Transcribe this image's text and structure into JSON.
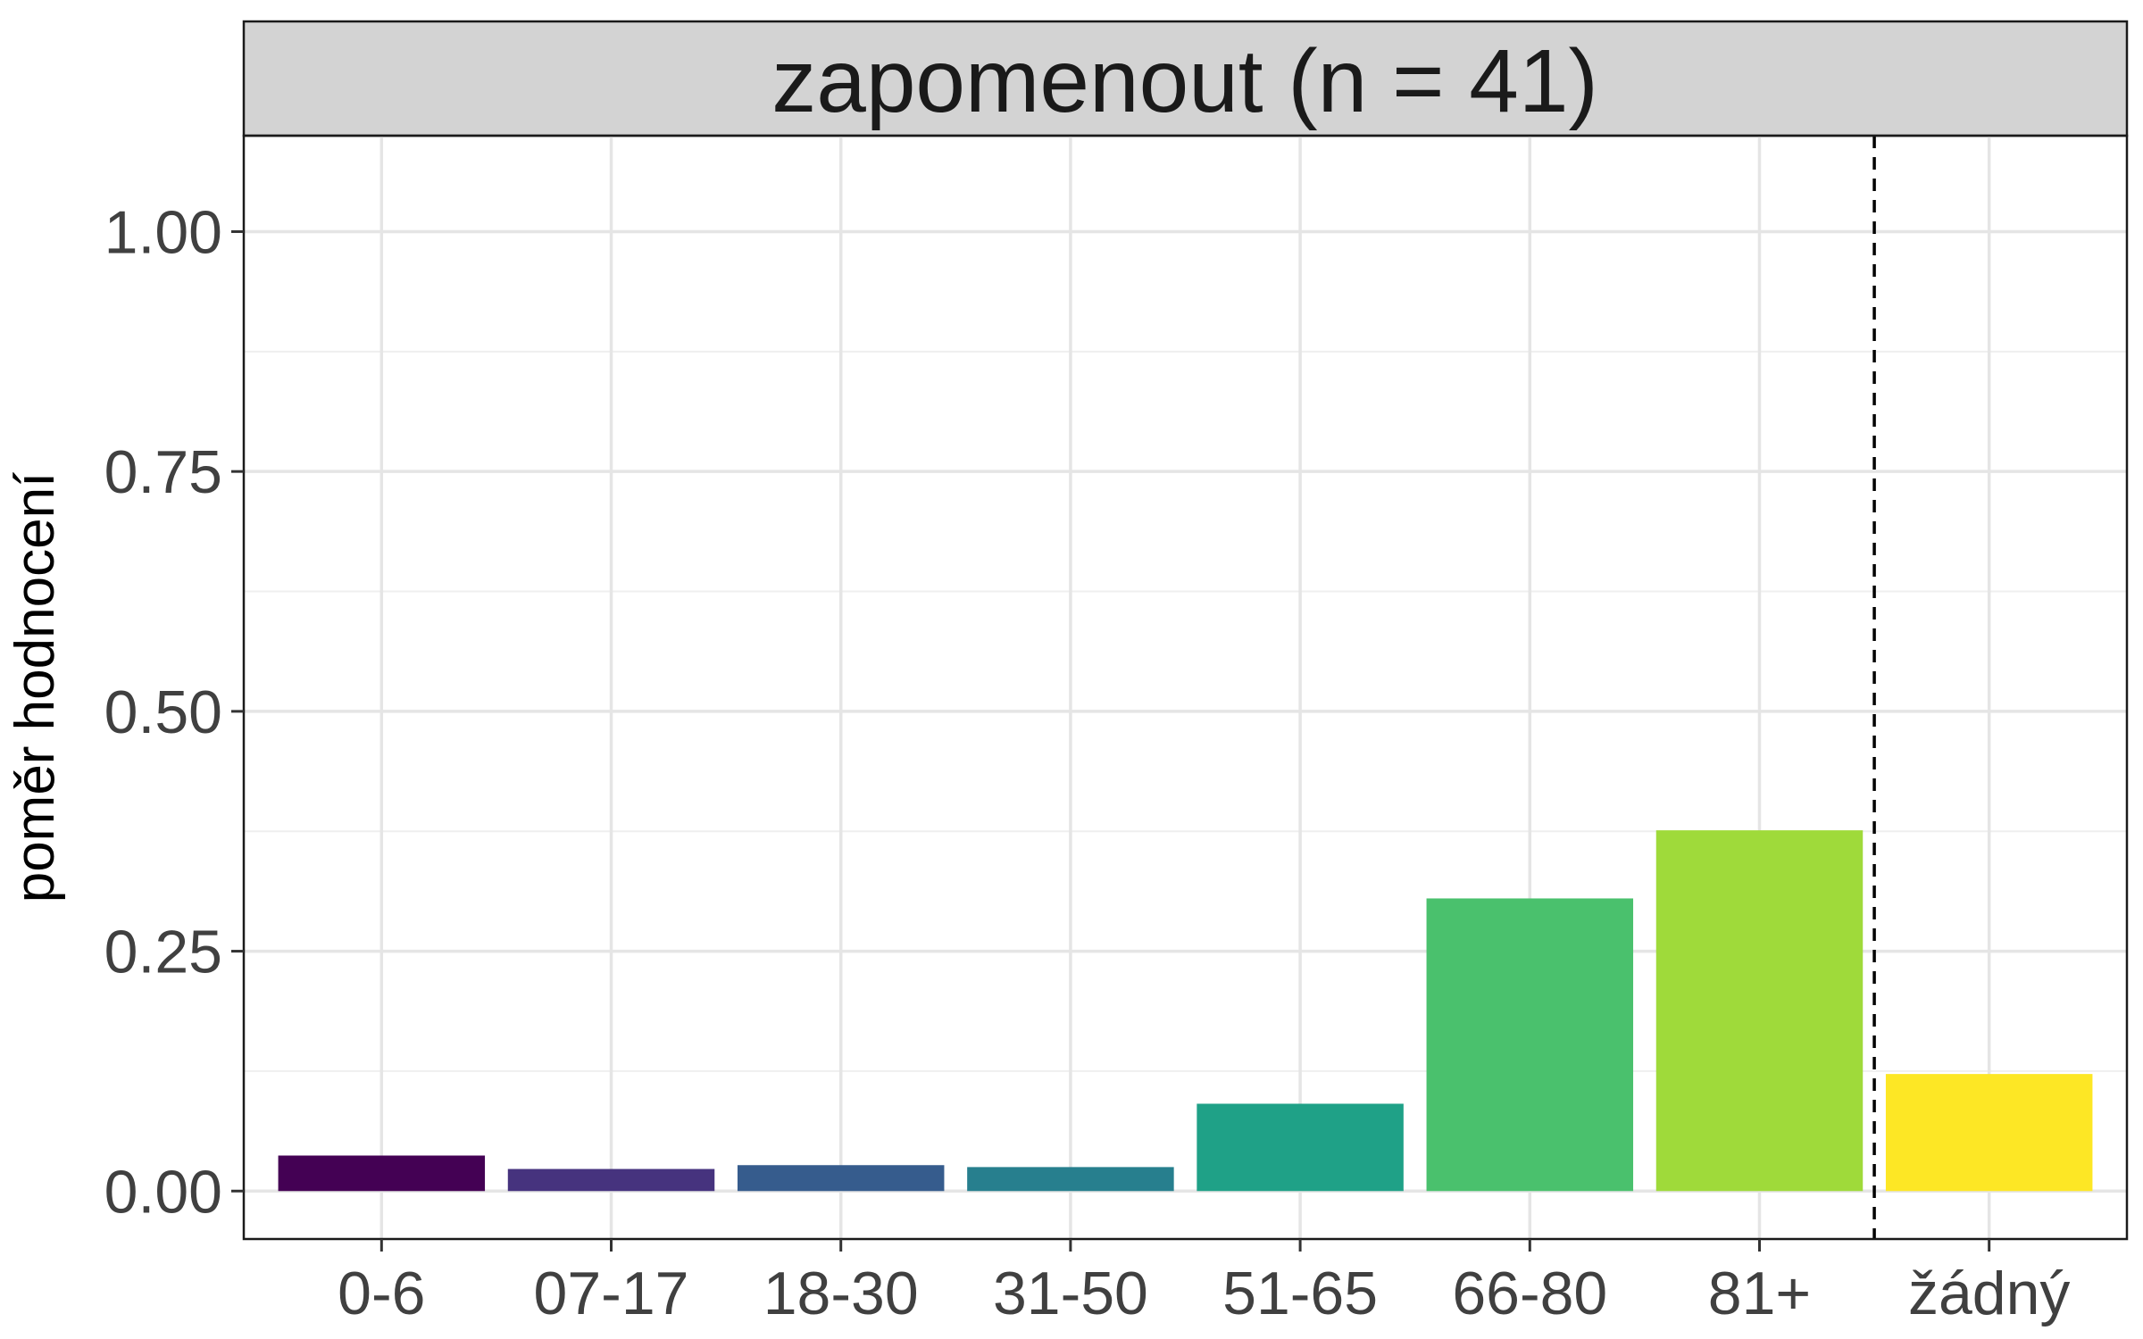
{
  "chart_data": {
    "type": "bar",
    "title": "zapomenout (n = 41)",
    "xlabel": "",
    "ylabel": "poměr hodnocení",
    "categories": [
      "0-6",
      "07-17",
      "18-30",
      "31-50",
      "51-65",
      "66-80",
      "81+",
      "žádný"
    ],
    "values": [
      0.037,
      0.023,
      0.027,
      0.025,
      0.091,
      0.305,
      0.376,
      0.122
    ],
    "colors": [
      "#440154",
      "#46337E",
      "#365C8D",
      "#277F8E",
      "#1FA187",
      "#4AC16D",
      "#9FDA3A",
      "#FDE725"
    ],
    "ylim": [
      -0.05,
      1.1
    ],
    "yticks": [
      "0.00",
      "0.25",
      "0.50",
      "0.75",
      "1.00"
    ],
    "ytick_values": [
      0,
      0.25,
      0.5,
      0.75,
      1.0
    ],
    "reference_line_after_category": "81+",
    "reference_line_style": "dashed",
    "grid": true,
    "legend": "none"
  }
}
